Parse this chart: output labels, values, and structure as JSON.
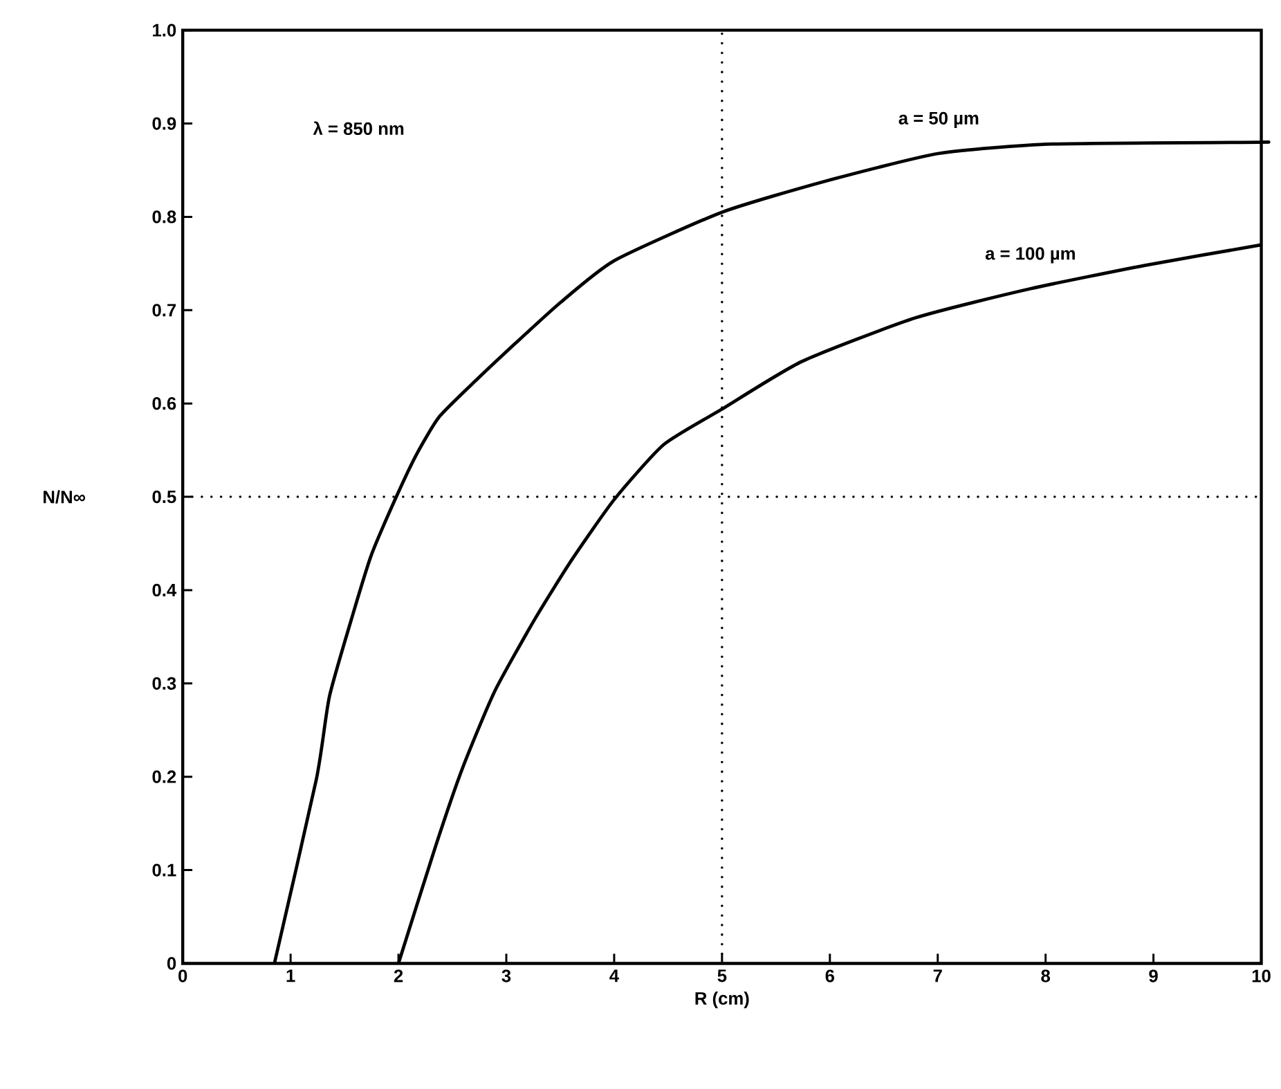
{
  "chart_data": {
    "type": "line",
    "xlabel": "R (cm)",
    "ylabel": "N/N∞",
    "annotations": [
      "λ = 850 nm"
    ],
    "xlim": [
      0,
      10
    ],
    "ylim": [
      0,
      1
    ],
    "xticks": [
      0,
      1,
      2,
      3,
      4,
      5,
      6,
      7,
      8,
      9,
      10
    ],
    "yticks": [
      0,
      0.1,
      0.2,
      0.3,
      0.4,
      0.5,
      0.6,
      0.7,
      0.8,
      0.9,
      {
        "value": 1,
        "label": "1.0"
      }
    ],
    "grid": false,
    "ref_lines": [
      {
        "axis": "x",
        "value": 5,
        "line_style": "dotted",
        "color": "#000000"
      },
      {
        "axis": "y",
        "value": 0.5,
        "line_style": "dotted",
        "color": "#000000"
      }
    ],
    "series": [
      {
        "name": "a =  50 µm",
        "color": "#000000",
        "x": [
          0.85,
          1.24,
          1.36,
          1.58,
          1.75,
          1.98,
          2.17,
          2.38,
          2.72,
          3.08,
          3.5,
          4.0,
          5.0,
          5.95,
          7.01,
          8.07,
          9.98,
          10
        ],
        "values": [
          0,
          0.198,
          0.286,
          0.375,
          0.438,
          0.5,
          0.546,
          0.586,
          0.625,
          0.664,
          0.708,
          0.753,
          0.805,
          0.838,
          0.868,
          0.878,
          0.88,
          0.88
        ]
      },
      {
        "name": "a =  100 µm",
        "color": "#000000",
        "x": [
          2.0,
          2.34,
          2.59,
          2.89,
          3.27,
          3.61,
          4.0,
          4.46,
          5.0,
          5.74,
          6.8,
          7.86,
          8.92,
          10
        ],
        "values": [
          0,
          0.124,
          0.208,
          0.291,
          0.37,
          0.433,
          0.497,
          0.556,
          0.594,
          0.645,
          0.692,
          0.723,
          0.748,
          0.77
        ]
      }
    ]
  }
}
